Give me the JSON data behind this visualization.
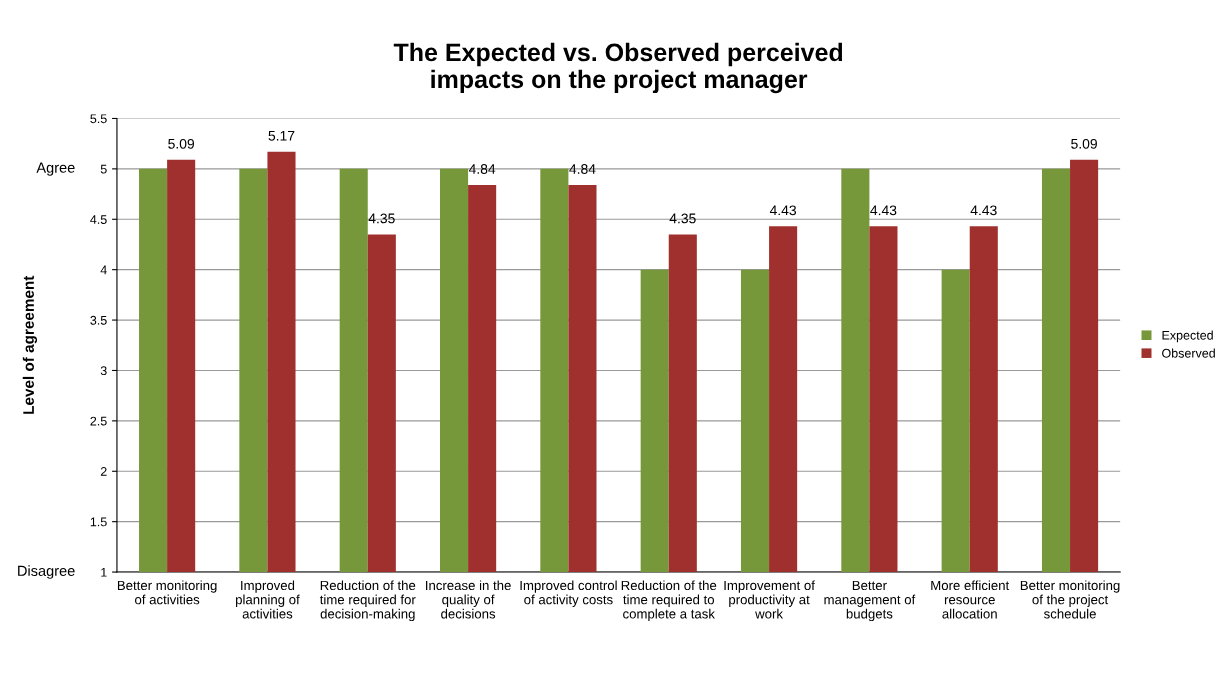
{
  "chart_data": {
    "type": "bar",
    "title": "The Expected vs. Observed perceived\nimpacts on the project manager",
    "ylabel": "Level of agreement",
    "categories": [
      "Better monitoring\nof activities",
      "Improved\nplanning of\nactivities",
      "Reduction of the\ntime required for\ndecision-making",
      "Increase in the\nquality of\ndecisions",
      "Improved control\nof activity costs",
      "Reduction of the\ntime required to\ncomplete a task",
      "Improvement of\nproductivity at\nwork",
      "Better\nmanagement of\nbudgets",
      "More efficient\nresource\nallocation",
      "Better monitoring\nof the project\nschedule"
    ],
    "series": [
      {
        "name": "Expected",
        "color": "#77983a",
        "values": [
          5,
          5,
          5,
          5,
          5,
          4,
          4,
          5,
          4,
          5
        ]
      },
      {
        "name": "Observed",
        "color": "#a0302e",
        "values": [
          5.09,
          5.17,
          4.35,
          4.84,
          4.84,
          4.35,
          4.43,
          4.43,
          4.43,
          5.09
        ],
        "value_labels": [
          "5.09",
          "5.17",
          "4.35",
          "4.84",
          "4.84",
          "4.35",
          "4.43",
          "4.43",
          "4.43",
          "5.09"
        ]
      }
    ],
    "ylim": [
      1,
      5.5
    ],
    "yticks": [
      1,
      1.5,
      2,
      2.5,
      3,
      3.5,
      4,
      4.5,
      5,
      5.5
    ],
    "grid": "y",
    "legend": "right",
    "annotations": [
      "Agree",
      "Disagree"
    ]
  }
}
